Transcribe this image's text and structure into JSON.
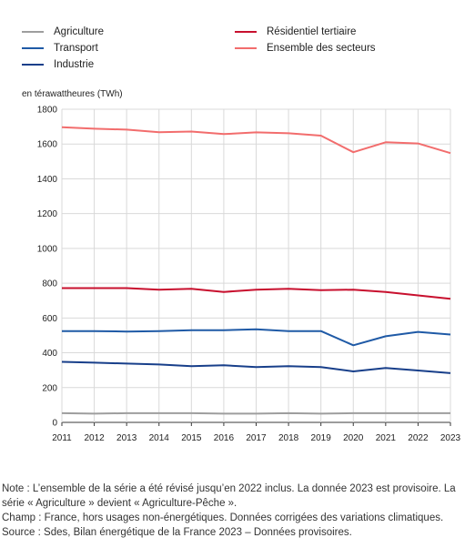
{
  "legend": [
    {
      "label": "Agriculture",
      "color": "#9e9e9e"
    },
    {
      "label": "Résidentiel tertiaire",
      "color": "#c8102e"
    },
    {
      "label": "Transport",
      "color": "#1f5aa6"
    },
    {
      "label": "Ensemble des secteurs",
      "color": "#f26d6d"
    },
    {
      "label": "Industrie",
      "color": "#183f8a"
    }
  ],
  "chart_data": {
    "type": "line",
    "title": "",
    "xlabel": "",
    "ylabel": "en térawattheures (TWh)",
    "ylim": [
      0,
      1800
    ],
    "yticks": [
      0,
      200,
      400,
      600,
      800,
      1000,
      1200,
      1400,
      1600,
      1800
    ],
    "grid": true,
    "legend_position": "top",
    "x": [
      "2011",
      "2012",
      "2013",
      "2014",
      "2015",
      "2016",
      "2017",
      "2018",
      "2019",
      "2020",
      "2021",
      "2022",
      "2023"
    ],
    "series": [
      {
        "name": "Agriculture",
        "color": "#9e9e9e",
        "values": [
          53,
          50,
          53,
          53,
          53,
          50,
          50,
          53,
          50,
          53,
          53,
          53,
          53
        ]
      },
      {
        "name": "Résidentiel tertiaire",
        "color": "#c8102e",
        "values": [
          772,
          772,
          772,
          763,
          768,
          750,
          763,
          768,
          760,
          763,
          750,
          730,
          710
        ]
      },
      {
        "name": "Transport",
        "color": "#1f5aa6",
        "values": [
          525,
          525,
          522,
          525,
          530,
          530,
          535,
          525,
          525,
          443,
          495,
          520,
          505
        ]
      },
      {
        "name": "Ensemble des secteurs",
        "color": "#f26d6d",
        "values": [
          1697,
          1688,
          1683,
          1668,
          1672,
          1657,
          1667,
          1662,
          1648,
          1553,
          1610,
          1603,
          1548
        ]
      },
      {
        "name": "Industrie",
        "color": "#183f8a",
        "values": [
          348,
          343,
          338,
          333,
          323,
          328,
          318,
          323,
          318,
          293,
          313,
          298,
          283
        ]
      }
    ]
  },
  "notes": {
    "note": "Note : L’ensemble de la série a été révisé jusqu’en 2022 inclus. La donnée 2023 est provisoire. La série « Agriculture » devient « Agriculture-Pêche ».",
    "champ": "Champ : France,  hors usages non-énergétiques. Données corrigées des variations climatiques.",
    "source": "Source : Sdes, Bilan énergétique de la France 2023 – Données provisoires."
  }
}
